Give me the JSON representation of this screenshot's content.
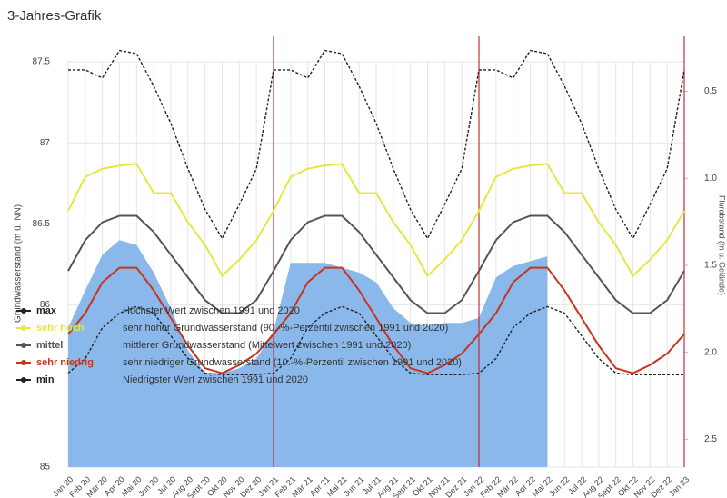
{
  "chart_data": {
    "type": "line",
    "title": "3-Jahres-Grafik",
    "ylabel": "Grundwasserstand (m ü. NN)",
    "y2label": "Flurabstand (m u. Gelände)",
    "categories": [
      "Jan 20",
      "Feb 20",
      "Mär 20",
      "Apr 20",
      "Mai 20",
      "Jun 20",
      "Jul 20",
      "Aug 20",
      "Sept 20",
      "Okt 20",
      "Nov 20",
      "Dez 20",
      "Jan 21",
      "Feb 21",
      "Mär 21",
      "Apr 21",
      "Mai 21",
      "Jun 21",
      "Jul 21",
      "Aug 21",
      "Sept 21",
      "Okt 21",
      "Nov 21",
      "Dez 21",
      "Jan 22",
      "Feb 22",
      "Mär 22",
      "Apr 22",
      "Mai 22",
      "Jun 22",
      "Jul 22",
      "Aug 22",
      "Sept 22",
      "Okt 22",
      "Nov 22",
      "Dez 22",
      "Jan 23"
    ],
    "ylim": [
      85,
      87.5
    ],
    "yticks": [
      85,
      86,
      86.5,
      87,
      87.5
    ],
    "y2lim": [
      0.33,
      2.66
    ],
    "y2_inverted": true,
    "y2ticks": [
      0.5,
      {
        "value": 1,
        "label": "1.0"
      },
      1.5,
      {
        "value": 2,
        "label": "2.0"
      },
      2.5
    ],
    "grid": true,
    "measured": {
      "color": "#8ab8ea",
      "values": [
        85.86,
        86.09,
        86.31,
        86.4,
        86.37,
        86.2,
        85.98,
        85.72,
        85.58,
        85.58,
        85.61,
        85.67,
        85.84,
        86.26,
        86.26,
        86.26,
        86.23,
        86.2,
        86.14,
        85.98,
        85.89,
        85.87,
        85.89,
        85.89,
        85.92,
        86.17,
        86.24,
        86.27,
        86.3,
        null,
        null,
        null,
        null,
        null,
        null,
        null,
        null
      ]
    },
    "series": [
      {
        "name": "max",
        "description": "Höchster Wert zwischen 1991 und 2020",
        "color": "#222222",
        "dash": true,
        "values": [
          87.45,
          87.45,
          87.4,
          87.57,
          87.55,
          87.35,
          87.12,
          86.84,
          86.59,
          86.41,
          86.62,
          86.84,
          87.45,
          87.45,
          87.4,
          87.57,
          87.55,
          87.35,
          87.12,
          86.84,
          86.59,
          86.41,
          86.62,
          86.84,
          87.45,
          87.45,
          87.4,
          87.57,
          87.55,
          87.35,
          87.12,
          86.84,
          86.59,
          86.41,
          86.62,
          86.84,
          87.45
        ]
      },
      {
        "name": "sehr hoch",
        "description": "sehr hoher Grundwasserstand (90.-%-Perzentil zwischen 1991 und 2020)",
        "color": "#e6e645",
        "dash": false,
        "values": [
          86.58,
          86.79,
          86.84,
          86.86,
          86.87,
          86.69,
          86.69,
          86.51,
          86.37,
          86.18,
          86.28,
          86.4,
          86.58,
          86.79,
          86.84,
          86.86,
          86.87,
          86.69,
          86.69,
          86.51,
          86.37,
          86.18,
          86.28,
          86.4,
          86.58,
          86.79,
          86.84,
          86.86,
          86.87,
          86.69,
          86.69,
          86.51,
          86.37,
          86.18,
          86.28,
          86.4,
          86.58
        ]
      },
      {
        "name": "mittel",
        "description": "mittlerer Grundwasserstand (Mittelwert zwischen 1991 und 2020)",
        "color": "#555555",
        "dash": false,
        "values": [
          86.21,
          86.4,
          86.51,
          86.55,
          86.55,
          86.45,
          86.31,
          86.17,
          86.03,
          85.95,
          85.95,
          86.03,
          86.21,
          86.4,
          86.51,
          86.55,
          86.55,
          86.45,
          86.31,
          86.17,
          86.03,
          85.95,
          85.95,
          86.03,
          86.21,
          86.4,
          86.51,
          86.55,
          86.55,
          86.45,
          86.31,
          86.17,
          86.03,
          85.95,
          85.95,
          86.03,
          86.21
        ]
      },
      {
        "name": "sehr niedrig",
        "description": "sehr niedriger Grundwasserstand (10.-%-Perzentil zwischen 1991 und 2020)",
        "color": "#c8341c",
        "dash": false,
        "values": [
          85.82,
          85.95,
          86.14,
          86.23,
          86.23,
          86.09,
          85.92,
          85.75,
          85.61,
          85.58,
          85.63,
          85.7,
          85.82,
          85.95,
          86.14,
          86.23,
          86.23,
          86.09,
          85.92,
          85.75,
          85.61,
          85.58,
          85.63,
          85.7,
          85.82,
          85.95,
          86.14,
          86.23,
          86.23,
          86.09,
          85.92,
          85.75,
          85.61,
          85.58,
          85.63,
          85.7,
          85.82
        ]
      },
      {
        "name": "min",
        "description": "Niedrigster Wert zwischen 1991 und 2020",
        "color": "#222222",
        "dash": true,
        "values": [
          85.58,
          85.67,
          85.86,
          85.95,
          85.99,
          85.95,
          85.81,
          85.67,
          85.58,
          85.57,
          85.57,
          85.57,
          85.58,
          85.67,
          85.86,
          85.95,
          85.99,
          85.95,
          85.81,
          85.67,
          85.58,
          85.57,
          85.57,
          85.57,
          85.58,
          85.67,
          85.86,
          85.95,
          85.99,
          85.95,
          85.81,
          85.67,
          85.58,
          85.57,
          85.57,
          85.57,
          85.57
        ]
      }
    ]
  }
}
